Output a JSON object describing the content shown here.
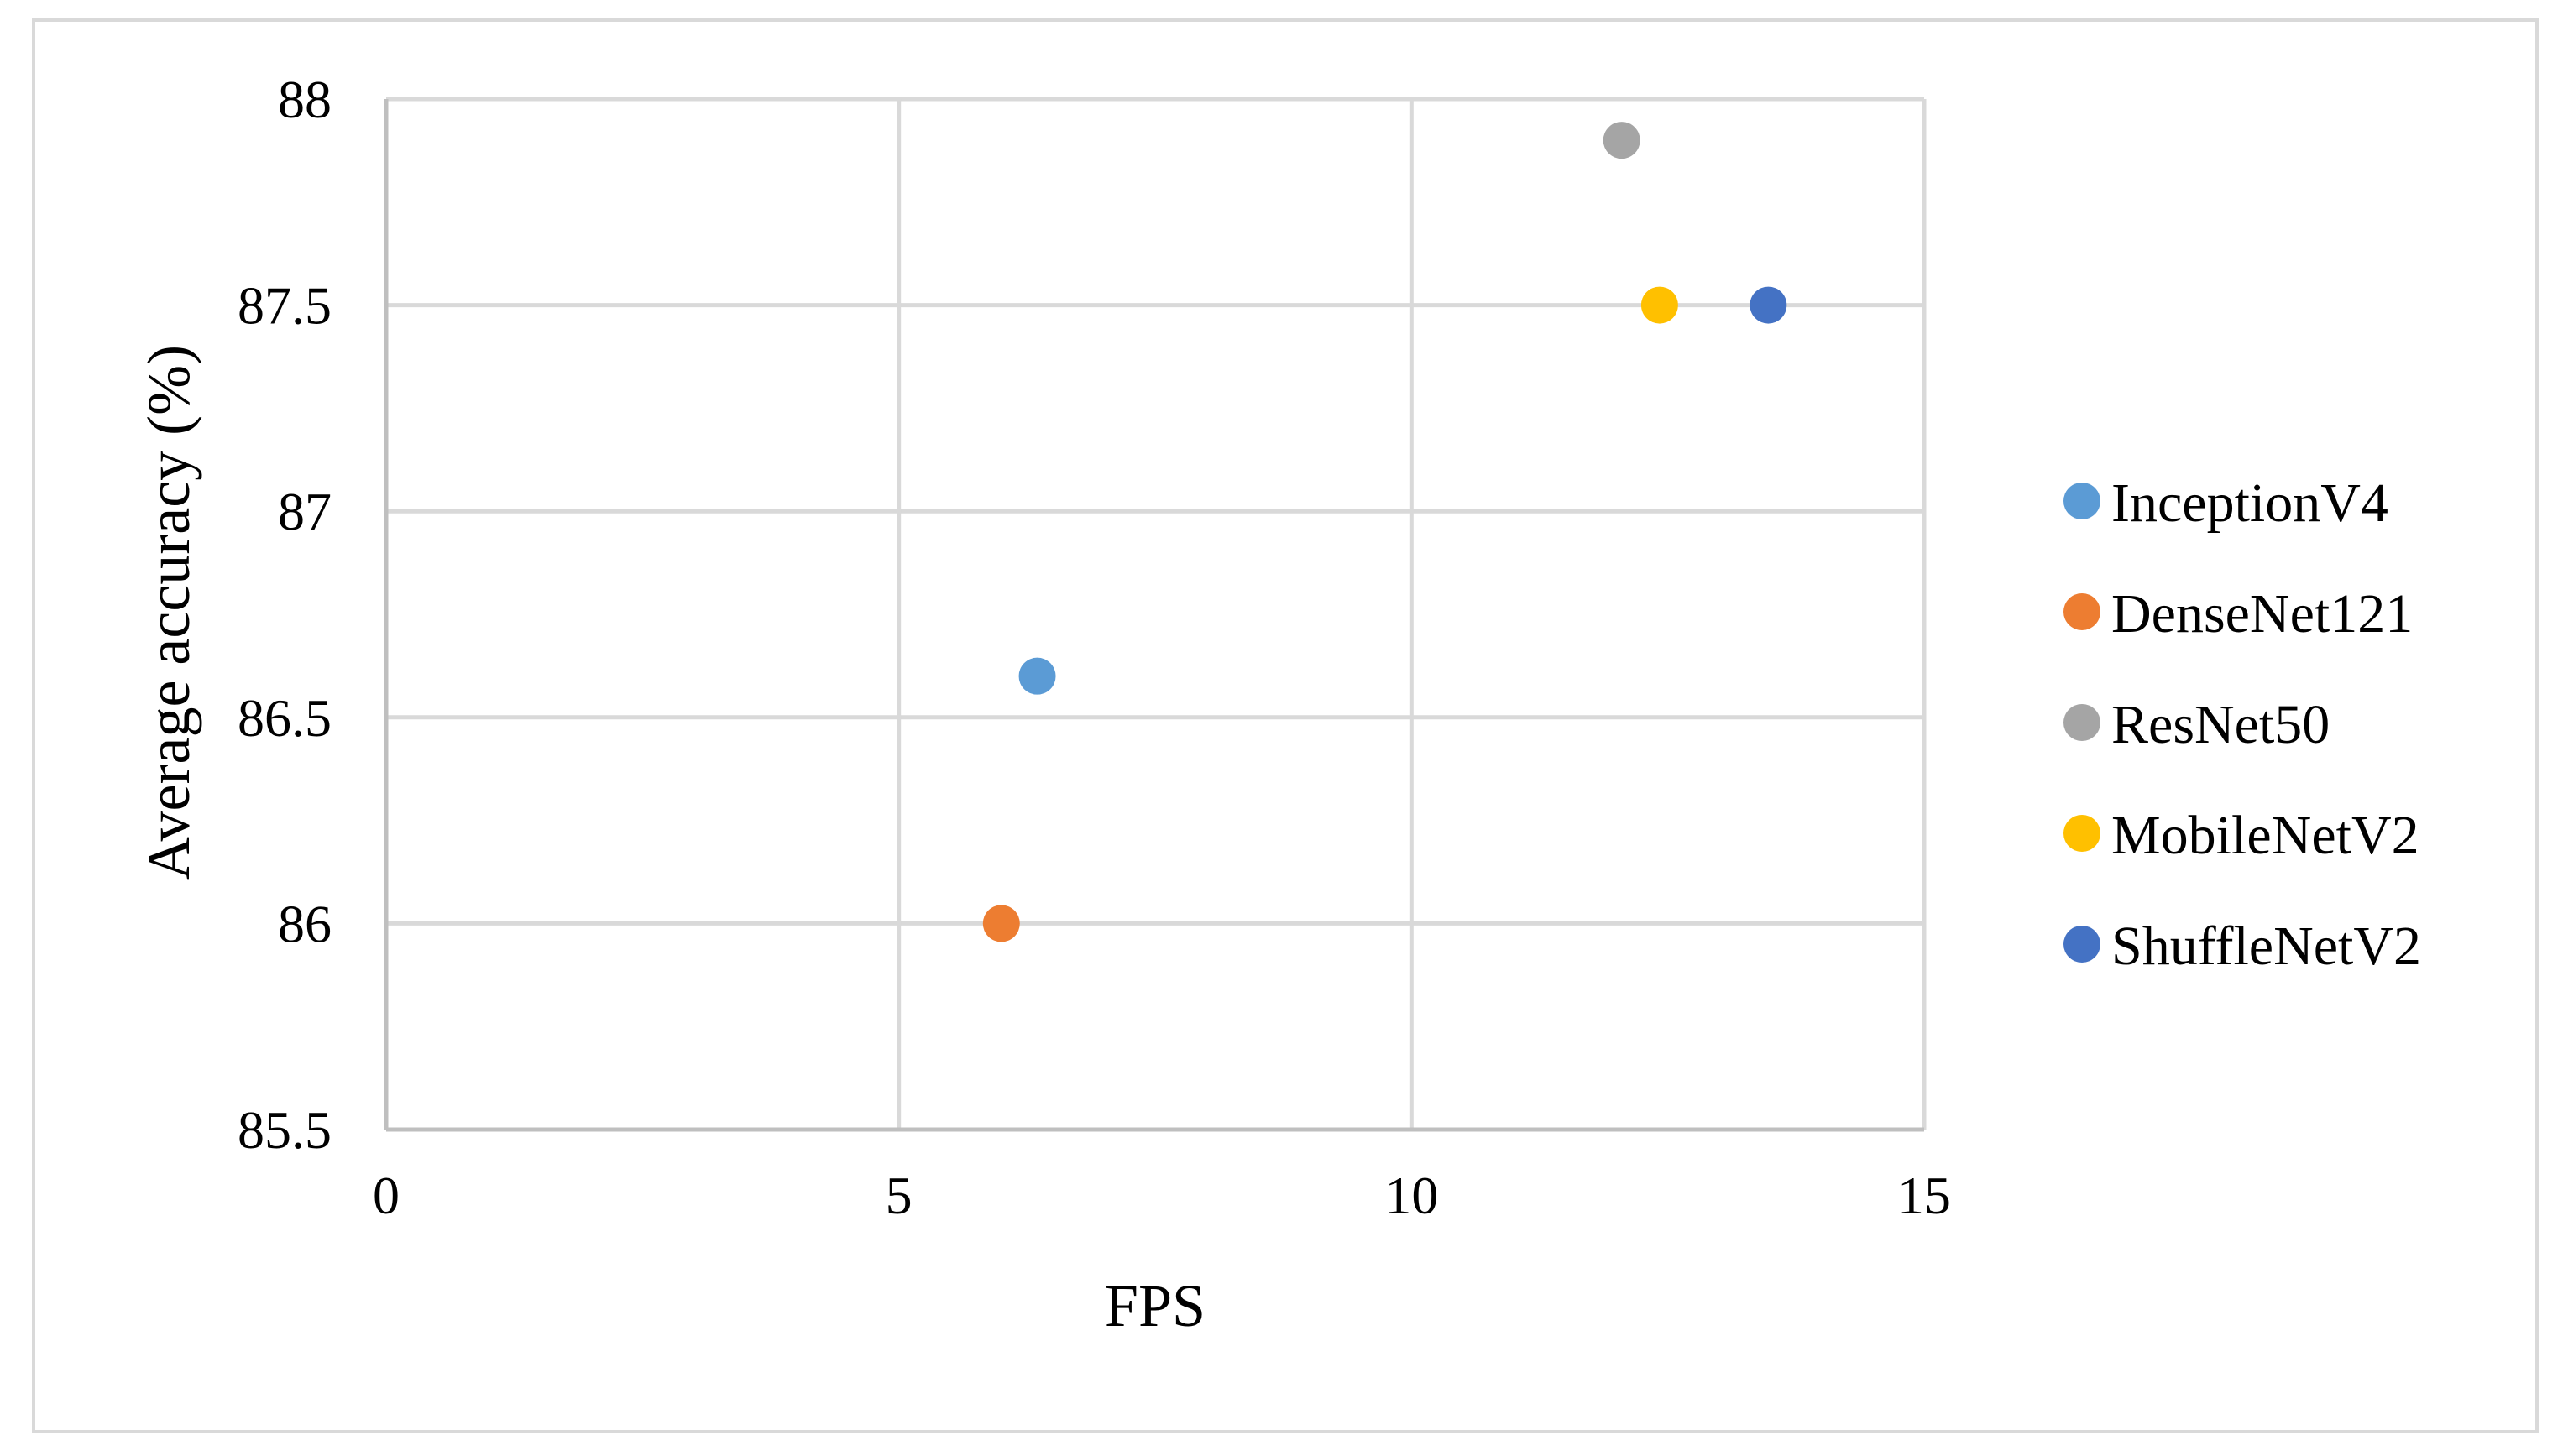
{
  "chart_data": {
    "type": "scatter",
    "xlabel": "FPS",
    "ylabel": "Average accuracy (%)",
    "xlim": [
      0,
      15
    ],
    "ylim": [
      85.5,
      88
    ],
    "x_ticks": [
      "0",
      "5",
      "10",
      "15"
    ],
    "y_ticks": [
      "85.5",
      "86",
      "86.5",
      "87",
      "87.5",
      "88"
    ],
    "grid": true,
    "legend_position": "right",
    "series": [
      {
        "name": "InceptionV4",
        "color": "#5b9bd5",
        "x": 6.35,
        "y": 86.6
      },
      {
        "name": "DenseNet121",
        "color": "#ed7d31",
        "x": 6.0,
        "y": 86.0
      },
      {
        "name": "ResNet50",
        "color": "#a5a5a5",
        "x": 12.05,
        "y": 87.9
      },
      {
        "name": "MobileNetV2",
        "color": "#ffc000",
        "x": 12.42,
        "y": 87.5
      },
      {
        "name": "ShuffleNetV2",
        "color": "#4472c4",
        "x": 13.48,
        "y": 87.5
      }
    ]
  }
}
